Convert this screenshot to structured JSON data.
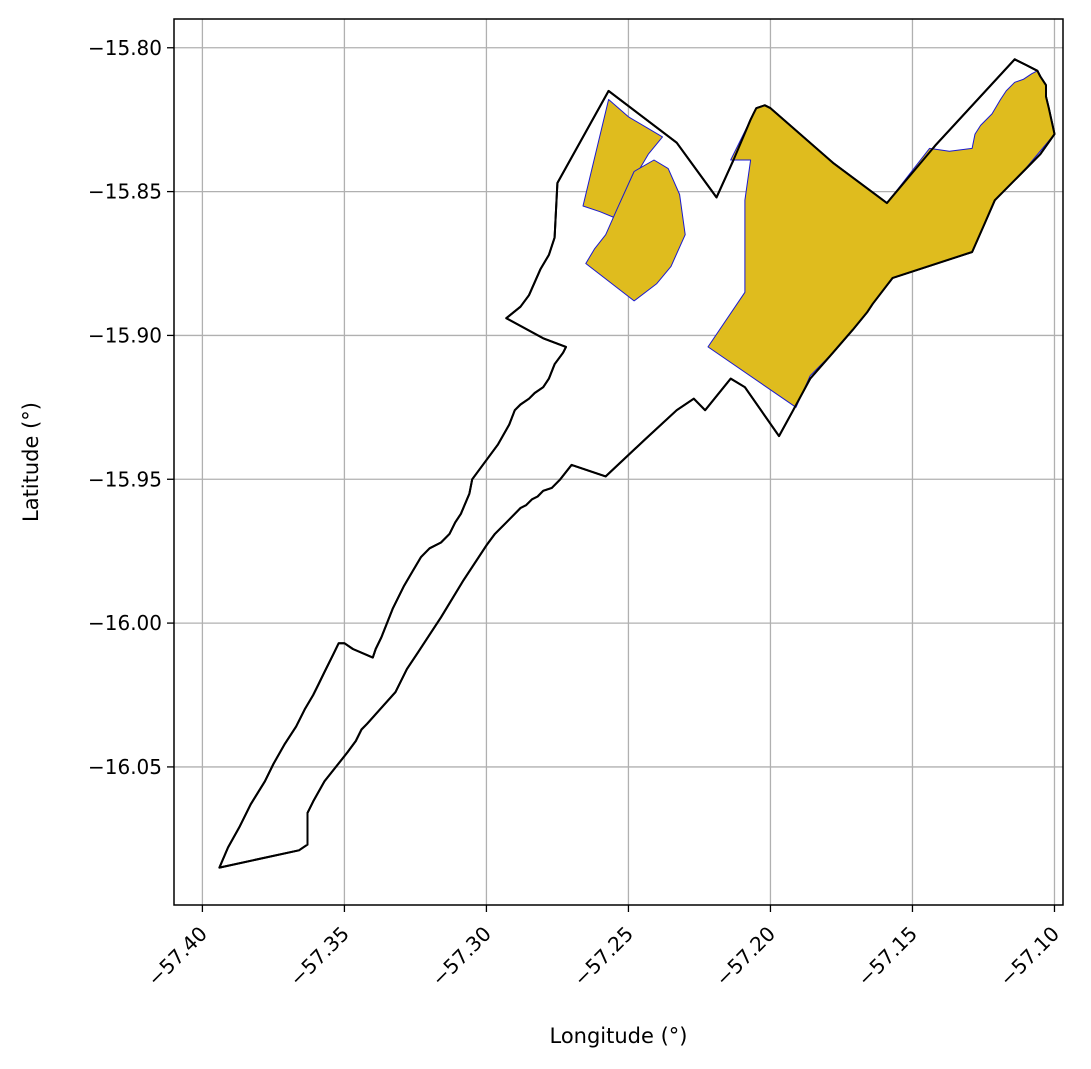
{
  "chart_data": {
    "type": "map",
    "title": "",
    "xlabel": "Longitude (°)",
    "ylabel": "Latitude (°)",
    "xlim": [
      -57.41,
      -57.097
    ],
    "ylim": [
      -16.098,
      -15.79
    ],
    "grid": true,
    "x_ticks": [
      {
        "value": -57.4,
        "label": "−57.40"
      },
      {
        "value": -57.35,
        "label": "−57.35"
      },
      {
        "value": -57.3,
        "label": "−57.30"
      },
      {
        "value": -57.25,
        "label": "−57.25"
      },
      {
        "value": -57.2,
        "label": "−57.20"
      },
      {
        "value": -57.15,
        "label": "−57.15"
      },
      {
        "value": -57.1,
        "label": "−57.10"
      }
    ],
    "y_ticks": [
      {
        "value": -15.8,
        "label": "−15.80"
      },
      {
        "value": -15.85,
        "label": "−15.85"
      },
      {
        "value": -15.9,
        "label": "−15.90"
      },
      {
        "value": -15.95,
        "label": "−15.95"
      },
      {
        "value": -16.0,
        "label": "−16.00"
      },
      {
        "value": -16.05,
        "label": "−16.05"
      }
    ],
    "layers": [
      {
        "name": "boundary",
        "fill": "none",
        "stroke": "#000000",
        "polygons": [
          [
            [
              -57.394,
              -16.085
            ],
            [
              -57.366,
              -16.079
            ],
            [
              -57.363,
              -16.077
            ],
            [
              -57.363,
              -16.066
            ],
            [
              -57.361,
              -16.062
            ],
            [
              -57.357,
              -16.055
            ],
            [
              -57.353,
              -16.05
            ],
            [
              -57.349,
              -16.045
            ],
            [
              -57.346,
              -16.041
            ],
            [
              -57.344,
              -16.037
            ],
            [
              -57.342,
              -16.035
            ],
            [
              -57.332,
              -16.024
            ],
            [
              -57.328,
              -16.016
            ],
            [
              -57.324,
              -16.01
            ],
            [
              -57.316,
              -15.998
            ],
            [
              -57.308,
              -15.985
            ],
            [
              -57.3,
              -15.973
            ],
            [
              -57.297,
              -15.969
            ],
            [
              -57.294,
              -15.966
            ],
            [
              -57.291,
              -15.963
            ],
            [
              -57.288,
              -15.96
            ],
            [
              -57.286,
              -15.959
            ],
            [
              -57.285,
              -15.958
            ],
            [
              -57.284,
              -15.957
            ],
            [
              -57.282,
              -15.956
            ],
            [
              -57.28,
              -15.954
            ],
            [
              -57.277,
              -15.953
            ],
            [
              -57.274,
              -15.95
            ],
            [
              -57.27,
              -15.945
            ],
            [
              -57.258,
              -15.949
            ],
            [
              -57.244,
              -15.936
            ],
            [
              -57.233,
              -15.926
            ],
            [
              -57.227,
              -15.922
            ],
            [
              -57.223,
              -15.926
            ],
            [
              -57.214,
              -15.915
            ],
            [
              -57.209,
              -15.918
            ],
            [
              -57.197,
              -15.935
            ],
            [
              -57.192,
              -15.926
            ],
            [
              -57.186,
              -15.915
            ],
            [
              -57.178,
              -15.906
            ],
            [
              -57.171,
              -15.898
            ],
            [
              -57.166,
              -15.892
            ],
            [
              -57.164,
              -15.889
            ],
            [
              -57.157,
              -15.88
            ],
            [
              -57.129,
              -15.871
            ],
            [
              -57.125,
              -15.862
            ],
            [
              -57.121,
              -15.853
            ],
            [
              -57.111,
              -15.843
            ],
            [
              -57.105,
              -15.837
            ],
            [
              -57.1,
              -15.83
            ],
            [
              -57.102,
              -15.821
            ],
            [
              -57.103,
              -15.817
            ],
            [
              -57.103,
              -15.813
            ],
            [
              -57.105,
              -15.81
            ],
            [
              -57.106,
              -15.808
            ],
            [
              -57.11,
              -15.806
            ],
            [
              -57.114,
              -15.804
            ],
            [
              -57.142,
              -15.834
            ],
            [
              -57.159,
              -15.854
            ],
            [
              -57.178,
              -15.84
            ],
            [
              -57.2,
              -15.821
            ],
            [
              -57.202,
              -15.82
            ],
            [
              -57.205,
              -15.821
            ],
            [
              -57.206,
              -15.823
            ],
            [
              -57.207,
              -15.825
            ],
            [
              -57.213,
              -15.839
            ],
            [
              -57.219,
              -15.852
            ],
            [
              -57.233,
              -15.833
            ],
            [
              -57.257,
              -15.815
            ],
            [
              -57.275,
              -15.847
            ],
            [
              -57.276,
              -15.866
            ],
            [
              -57.278,
              -15.872
            ],
            [
              -57.281,
              -15.877
            ],
            [
              -57.285,
              -15.886
            ],
            [
              -57.288,
              -15.89
            ],
            [
              -57.293,
              -15.894
            ],
            [
              -57.28,
              -15.901
            ],
            [
              -57.272,
              -15.904
            ],
            [
              -57.273,
              -15.906
            ],
            [
              -57.276,
              -15.91
            ],
            [
              -57.278,
              -15.915
            ],
            [
              -57.28,
              -15.918
            ],
            [
              -57.283,
              -15.92
            ],
            [
              -57.285,
              -15.922
            ],
            [
              -57.288,
              -15.924
            ],
            [
              -57.29,
              -15.926
            ],
            [
              -57.292,
              -15.931
            ],
            [
              -57.296,
              -15.938
            ],
            [
              -57.299,
              -15.942
            ],
            [
              -57.302,
              -15.946
            ],
            [
              -57.305,
              -15.95
            ],
            [
              -57.306,
              -15.955
            ],
            [
              -57.309,
              -15.962
            ],
            [
              -57.311,
              -15.965
            ],
            [
              -57.313,
              -15.969
            ],
            [
              -57.316,
              -15.972
            ],
            [
              -57.32,
              -15.974
            ],
            [
              -57.323,
              -15.977
            ],
            [
              -57.326,
              -15.982
            ],
            [
              -57.329,
              -15.987
            ],
            [
              -57.331,
              -15.991
            ],
            [
              -57.333,
              -15.995
            ],
            [
              -57.335,
              -16.0
            ],
            [
              -57.337,
              -16.005
            ],
            [
              -57.339,
              -16.009
            ],
            [
              -57.34,
              -16.012
            ],
            [
              -57.347,
              -16.009
            ],
            [
              -57.35,
              -16.007
            ],
            [
              -57.352,
              -16.007
            ],
            [
              -57.354,
              -16.011
            ],
            [
              -57.357,
              -16.017
            ],
            [
              -57.359,
              -16.021
            ],
            [
              -57.361,
              -16.025
            ],
            [
              -57.364,
              -16.03
            ],
            [
              -57.367,
              -16.036
            ],
            [
              -57.371,
              -16.042
            ],
            [
              -57.375,
              -16.049
            ],
            [
              -57.378,
              -16.055
            ],
            [
              -57.383,
              -16.063
            ],
            [
              -57.387,
              -16.071
            ],
            [
              -57.391,
              -16.078
            ],
            [
              -57.394,
              -16.085
            ]
          ]
        ]
      },
      {
        "name": "highlighted areas",
        "fill": "#dfbc1e",
        "stroke": "#1a1ad0",
        "polygons": [
          [
            [
              -57.266,
              -15.855
            ],
            [
              -57.26,
              -15.857
            ],
            [
              -57.255,
              -15.859
            ],
            [
              -57.252,
              -15.852
            ],
            [
              -57.243,
              -15.837
            ],
            [
              -57.238,
              -15.831
            ],
            [
              -57.25,
              -15.824
            ],
            [
              -57.257,
              -15.818
            ],
            [
              -57.266,
              -15.855
            ]
          ],
          [
            [
              -57.241,
              -15.839
            ],
            [
              -57.248,
              -15.843
            ],
            [
              -57.254,
              -15.856
            ],
            [
              -57.258,
              -15.865
            ],
            [
              -57.262,
              -15.87
            ],
            [
              -57.265,
              -15.875
            ],
            [
              -57.248,
              -15.888
            ],
            [
              -57.24,
              -15.882
            ],
            [
              -57.235,
              -15.876
            ],
            [
              -57.23,
              -15.865
            ],
            [
              -57.232,
              -15.851
            ],
            [
              -57.236,
              -15.842
            ],
            [
              -57.241,
              -15.839
            ]
          ],
          [
            [
              -57.214,
              -15.839
            ],
            [
              -57.207,
              -15.839
            ],
            [
              -57.209,
              -15.853
            ],
            [
              -57.209,
              -15.885
            ],
            [
              -57.222,
              -15.904
            ],
            [
              -57.191,
              -15.925
            ],
            [
              -57.186,
              -15.914
            ],
            [
              -57.178,
              -15.906
            ],
            [
              -57.171,
              -15.898
            ],
            [
              -57.166,
              -15.892
            ],
            [
              -57.164,
              -15.889
            ],
            [
              -57.157,
              -15.88
            ],
            [
              -57.129,
              -15.871
            ],
            [
              -57.125,
              -15.862
            ],
            [
              -57.121,
              -15.853
            ],
            [
              -57.111,
              -15.843
            ],
            [
              -57.1,
              -15.83
            ],
            [
              -57.102,
              -15.821
            ],
            [
              -57.103,
              -15.817
            ],
            [
              -57.103,
              -15.813
            ],
            [
              -57.106,
              -15.808
            ],
            [
              -57.108,
              -15.809
            ],
            [
              -57.111,
              -15.811
            ],
            [
              -57.114,
              -15.812
            ],
            [
              -57.117,
              -15.815
            ],
            [
              -57.119,
              -15.818
            ],
            [
              -57.122,
              -15.823
            ],
            [
              -57.126,
              -15.827
            ],
            [
              -57.128,
              -15.83
            ],
            [
              -57.129,
              -15.835
            ],
            [
              -57.137,
              -15.836
            ],
            [
              -57.144,
              -15.835
            ],
            [
              -57.159,
              -15.854
            ],
            [
              -57.178,
              -15.84
            ],
            [
              -57.2,
              -15.821
            ],
            [
              -57.202,
              -15.82
            ],
            [
              -57.205,
              -15.821
            ],
            [
              -57.206,
              -15.823
            ],
            [
              -57.207,
              -15.825
            ],
            [
              -57.214,
              -15.839
            ]
          ]
        ]
      }
    ]
  }
}
